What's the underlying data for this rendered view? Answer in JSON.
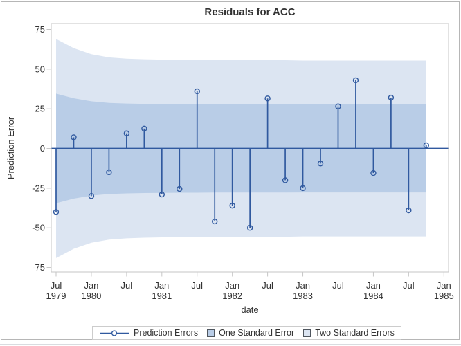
{
  "chart_data": {
    "type": "line",
    "subtype": "stem-plot-with-confidence-bands",
    "title": "Residuals for ACC",
    "xlabel": "date",
    "ylabel": "Prediction Error",
    "categories": [
      "Jul 1979",
      "Oct 1979",
      "Jan 1980",
      "Apr 1980",
      "Jul 1980",
      "Oct 1980",
      "Jan 1981",
      "Apr 1981",
      "Jul 1981",
      "Oct 1981",
      "Jan 1982",
      "Apr 1982",
      "Jul 1982",
      "Oct 1982",
      "Jan 1983",
      "Apr 1983",
      "Jul 1983",
      "Oct 1983",
      "Jan 1984",
      "Apr 1984",
      "Jul 1984",
      "Oct 1984"
    ],
    "series": [
      {
        "name": "Prediction Errors",
        "values": [
          -40,
          7,
          -30,
          -15,
          9.5,
          12.5,
          -29,
          -25.5,
          36,
          -46,
          -36,
          -50,
          31.5,
          -20,
          -25,
          -9.5,
          26.5,
          43,
          -15.5,
          32,
          -39,
          2
        ]
      },
      {
        "name": "One Standard Error",
        "upper": [
          34.5,
          31.6,
          29.7,
          28.7,
          28.3,
          28.1,
          28.0,
          27.9,
          27.9,
          27.8,
          27.8,
          27.8,
          27.8,
          27.8,
          27.7,
          27.7,
          27.7,
          27.7,
          27.7,
          27.7,
          27.7,
          27.7
        ],
        "band": "symmetric about 0"
      },
      {
        "name": "Two Standard Errors",
        "upper": [
          69.0,
          63.2,
          59.4,
          57.4,
          56.6,
          56.2,
          56.0,
          55.8,
          55.8,
          55.6,
          55.6,
          55.6,
          55.6,
          55.6,
          55.4,
          55.4,
          55.4,
          55.4,
          55.4,
          55.4,
          55.4,
          55.4
        ],
        "band": "symmetric about 0"
      }
    ],
    "y_ticks": [
      75,
      50,
      25,
      0,
      -25,
      -50,
      -75
    ],
    "x_ticks": [
      {
        "month": "Jul",
        "year": "1979"
      },
      {
        "month": "Jan",
        "year": "1980"
      },
      {
        "month": "Jul",
        "year": ""
      },
      {
        "month": "Jan",
        "year": "1981"
      },
      {
        "month": "Jul",
        "year": ""
      },
      {
        "month": "Jan",
        "year": "1982"
      },
      {
        "month": "Jul",
        "year": ""
      },
      {
        "month": "Jan",
        "year": "1983"
      },
      {
        "month": "Jul",
        "year": ""
      },
      {
        "month": "Jan",
        "year": "1984"
      },
      {
        "month": "Jul",
        "year": ""
      },
      {
        "month": "Jan",
        "year": "1985"
      }
    ],
    "ylim": [
      -77.8,
      78.7
    ],
    "grid": false,
    "legend_position": "bottom",
    "legend_items": [
      {
        "label": "Prediction Errors",
        "glyph": "line-with-circle-marker"
      },
      {
        "label": "One Standard Error",
        "glyph": "filled-square"
      },
      {
        "label": "Two Standard Errors",
        "glyph": "filled-square"
      }
    ],
    "colors": {
      "series_line": "#30599f",
      "one_se_fill": "#b9cde7",
      "two_se_fill": "#dce5f2",
      "frame": "#c6c6c6",
      "text": "#333333"
    }
  }
}
